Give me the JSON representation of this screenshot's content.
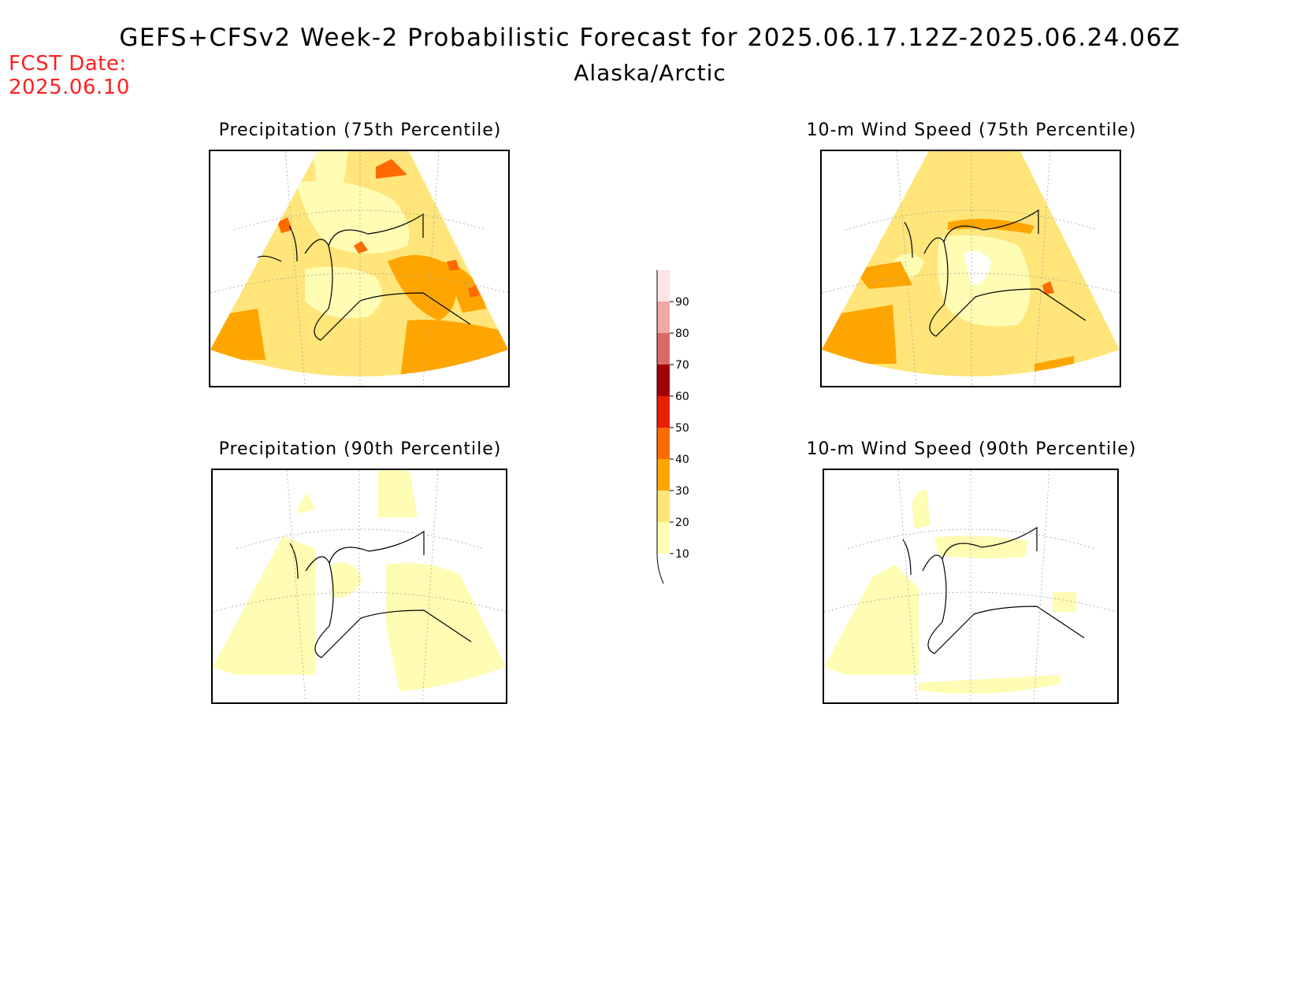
{
  "header": {
    "title": "GEFS+CFSv2 Week-2 Probabilistic Forecast for 2025.06.17.12Z-2025.06.24.06Z",
    "subtitle": "Alaska/Arctic",
    "fcst_label": "FCST Date:",
    "fcst_date": "2025.06.10"
  },
  "panels": [
    {
      "id": "precip75",
      "title": "Precipitation (75th Percentile)"
    },
    {
      "id": "wind75",
      "title": "10-m Wind Speed (75th Percentile)"
    },
    {
      "id": "precip90",
      "title": "Precipitation (90th Percentile)"
    },
    {
      "id": "wind90",
      "title": "10-m Wind Speed (90th Percentile)"
    }
  ],
  "legend": {
    "levels": [
      "10",
      "20",
      "30",
      "40",
      "50",
      "60",
      "70",
      "80",
      "90"
    ],
    "colors": [
      "#fffcb4",
      "#ffe57a",
      "#ffa500",
      "#ff6a00",
      "#e81e00",
      "#a30000",
      "#d96a6a",
      "#f2a7a7",
      "#fde3e3"
    ]
  }
}
